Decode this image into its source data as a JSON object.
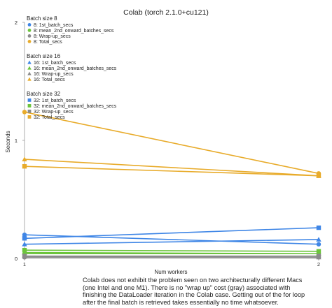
{
  "chart_data": {
    "type": "line",
    "title": "Colab (torch 2.1.0+cu121)",
    "xlabel": "Num workers",
    "ylabel": "Seconds",
    "x": [
      1,
      2
    ],
    "xlim": [
      1,
      2
    ],
    "ylim": [
      0,
      2
    ],
    "x_ticks": [
      "1",
      "2"
    ],
    "y_ticks": [
      "0",
      "1",
      "2"
    ],
    "grid": false,
    "legend_position": "top-left",
    "groups": [
      {
        "title": "Batch size 8",
        "marker": "circle",
        "series": [
          {
            "name": "8: 1st_batch_secs",
            "color": "#3f86e6",
            "values": [
              0.2,
              0.12
            ]
          },
          {
            "name": "8: mean_2nd_onward_batches_secs",
            "color": "#6cc43c",
            "values": [
              0.04,
              0.04
            ]
          },
          {
            "name": "8: Wrap-up_secs",
            "color": "#8a8a8a",
            "values": [
              0.01,
              0.01
            ]
          },
          {
            "name": "8: Total_secs",
            "color": "#e8ab2a",
            "values": [
              1.24,
              0.72
            ]
          }
        ]
      },
      {
        "title": "Batch size 16",
        "marker": "triangle",
        "series": [
          {
            "name": "16: 1st_batch_secs",
            "color": "#3f86e6",
            "values": [
              0.12,
              0.16
            ]
          },
          {
            "name": "16: mean_2nd_onward_batches_secs",
            "color": "#6cc43c",
            "values": [
              0.05,
              0.04
            ]
          },
          {
            "name": "16: Wrap-up_secs",
            "color": "#8a8a8a",
            "values": [
              0.02,
              0.01
            ]
          },
          {
            "name": "16: Total_secs",
            "color": "#e8ab2a",
            "values": [
              0.84,
              0.7
            ]
          }
        ]
      },
      {
        "title": "Batch size 32",
        "marker": "square",
        "series": [
          {
            "name": "32: 1st_batch_secs",
            "color": "#3f86e6",
            "values": [
              0.17,
              0.26
            ]
          },
          {
            "name": "32: mean_2nd_onward_batches_secs",
            "color": "#6cc43c",
            "values": [
              0.07,
              0.06
            ]
          },
          {
            "name": "32: Wrap-up_secs",
            "color": "#8a8a8a",
            "values": [
              0.02,
              0.02
            ]
          },
          {
            "name": "32: Total_secs",
            "color": "#e8ab2a",
            "values": [
              0.78,
              0.7
            ]
          }
        ]
      }
    ]
  },
  "caption": [
    "Colab does not exhibit the problem seen on two architecturally different Macs",
    "(one Intel and one M1). There is no \"wrap up\" cost (gray) associated with",
    "finishing the DataLoader iteration in the Colab case. Getting out of the for loop",
    "after the final batch is retrieved takes essentially no time whatsoever."
  ]
}
